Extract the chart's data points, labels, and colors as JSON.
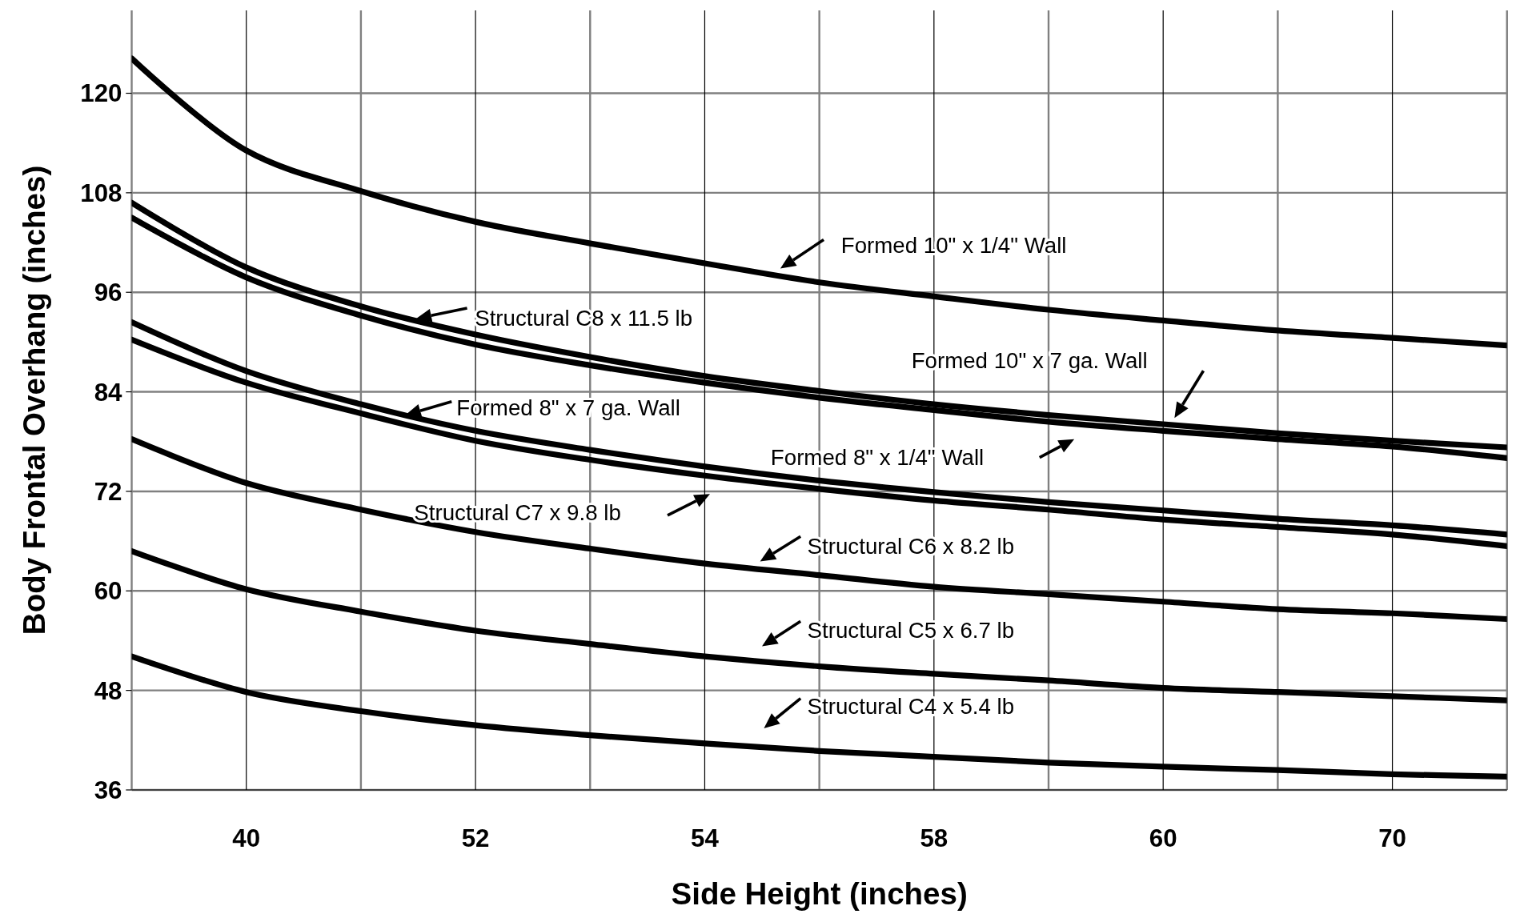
{
  "chart_data": {
    "type": "line",
    "xlabel": "Side Height (inches)",
    "ylabel": "Body Frontal Overhang (inches)",
    "categories": [
      null,
      "40",
      null,
      "52",
      null,
      "54",
      null,
      "58",
      null,
      "60",
      null,
      "70",
      null
    ],
    "ylim": [
      36,
      130
    ],
    "yticks": [
      36,
      48,
      60,
      72,
      84,
      96,
      108,
      120
    ],
    "grid": true,
    "line_style": "solid",
    "series": [
      {
        "color": "#000000",
        "values": [
          124.2,
          113.1,
          108.2,
          104.5,
          101.9,
          99.5,
          97.2,
          95.5,
          93.9,
          92.6,
          91.4,
          90.5,
          89.6
        ]
      },
      {
        "color": "#000000",
        "values": [
          106.8,
          99.0,
          94.3,
          90.9,
          88.2,
          85.9,
          84.1,
          82.5,
          81.2,
          80.1,
          79.0,
          78.1,
          77.3
        ]
      },
      {
        "color": "#000000",
        "values": [
          105.0,
          97.8,
          93.2,
          89.7,
          87.2,
          85.1,
          83.3,
          81.8,
          80.4,
          79.3,
          78.3,
          77.4,
          76.0
        ]
      },
      {
        "color": "#000000",
        "values": [
          92.4,
          86.5,
          82.5,
          79.3,
          77.0,
          75.0,
          73.3,
          71.9,
          70.7,
          69.7,
          68.7,
          67.9,
          66.8
        ]
      },
      {
        "color": "#000000",
        "values": [
          90.3,
          85.1,
          81.4,
          78.1,
          75.8,
          73.9,
          72.3,
          70.9,
          69.8,
          68.6,
          67.7,
          66.8,
          65.4
        ]
      },
      {
        "color": "#000000",
        "values": [
          78.3,
          73.0,
          69.8,
          67.1,
          65.1,
          63.3,
          61.9,
          60.5,
          59.6,
          58.7,
          57.8,
          57.3,
          56.6
        ]
      },
      {
        "color": "#000000",
        "values": [
          64.8,
          60.2,
          57.5,
          55.2,
          53.6,
          52.1,
          50.9,
          50.0,
          49.2,
          48.3,
          47.8,
          47.3,
          46.8
        ]
      },
      {
        "color": "#000000",
        "values": [
          52.1,
          47.8,
          45.5,
          43.8,
          42.6,
          41.6,
          40.7,
          40.0,
          39.3,
          38.8,
          38.4,
          37.9,
          37.6
        ]
      }
    ],
    "annotations": [
      "Formed 10\" x 1/4\" Wall",
      "Structural C8 x 11.5 lb",
      "Formed 10\" x 7 ga. Wall",
      "Formed 8\" x 7 ga. Wall",
      "Formed 8\" x 1/4\" Wall",
      "Structural C7 x 9.8 lb",
      "Structural C6 x 8.2 lb",
      "Structural C5 x 6.7 lb",
      "Structural C4 x 5.4 lb"
    ]
  }
}
